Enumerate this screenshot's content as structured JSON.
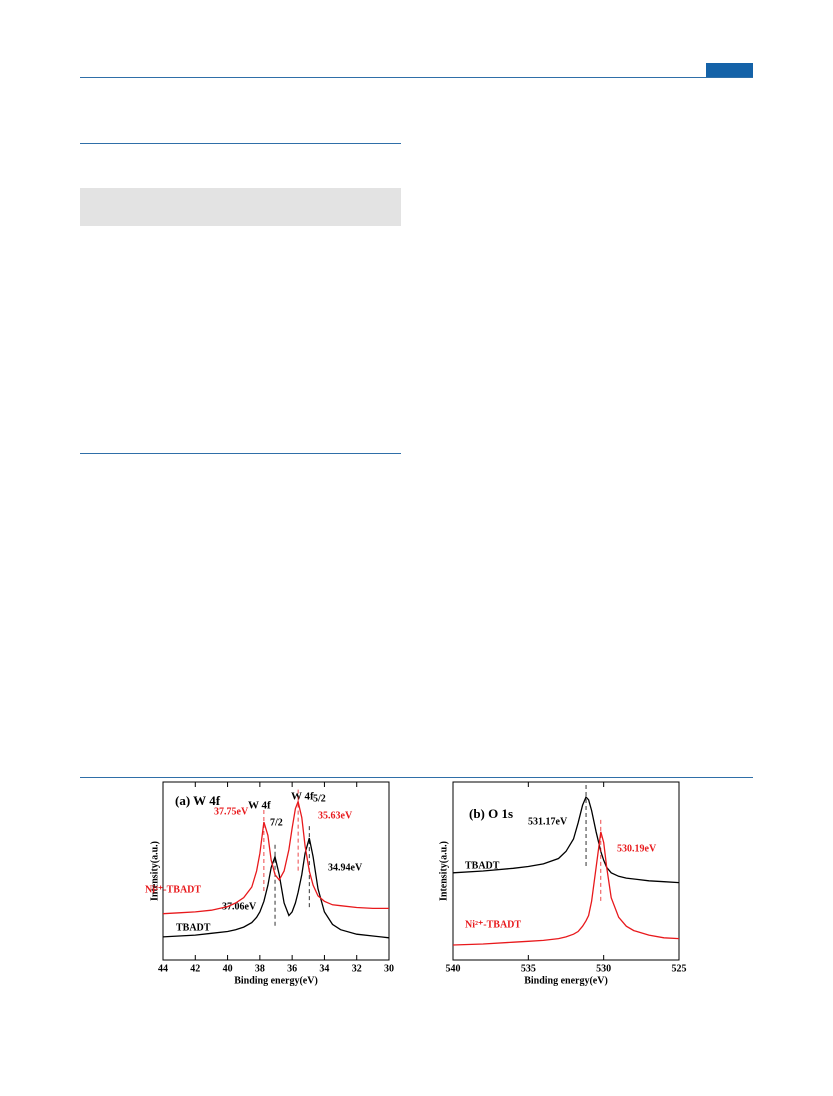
{
  "chart_data": [
    {
      "type": "line",
      "title": "(a) W 4f",
      "x_label": "Binding energy(eV)",
      "y_label": "Intensity(a.u.)",
      "annotations": [
        "W 4f",
        "7/2",
        "W 4f",
        "5/2"
      ],
      "xlim": [
        44,
        30
      ],
      "xticks": [
        44,
        42,
        40,
        38,
        36,
        34,
        32,
        30
      ],
      "ylim": [
        0,
        100
      ],
      "x": [
        44,
        43,
        42,
        41,
        40,
        39.5,
        39,
        38.5,
        38.2,
        38,
        37.75,
        37.5,
        37.3,
        37.06,
        36.8,
        36.5,
        36.2,
        36,
        35.8,
        35.63,
        35.4,
        35.2,
        34.94,
        34.7,
        34.4,
        34,
        33.5,
        33,
        32,
        31,
        30
      ],
      "series": [
        {
          "name": "TBADT",
          "color": "#000000",
          "values": [
            13,
            13.5,
            14,
            15,
            16,
            17,
            18.5,
            21,
            24,
            27,
            33,
            42,
            52,
            58,
            48,
            32,
            25,
            27,
            32,
            38,
            48,
            60,
            68.5,
            58,
            40,
            27,
            20,
            17,
            14.5,
            13.5,
            12.5
          ],
          "peaks": [
            {
              "label": "37.06eV",
              "x": 37.06
            },
            {
              "label": "34.94eV",
              "x": 34.94
            }
          ]
        },
        {
          "name": "Ni²⁺-TBADT",
          "color": "#e8191c",
          "values": [
            26,
            26.5,
            27,
            28,
            30,
            32,
            35,
            41,
            50,
            60,
            77.5,
            70,
            56,
            48,
            45,
            50,
            62,
            74,
            85,
            89,
            80,
            64,
            50,
            42,
            36,
            33,
            31,
            30.5,
            29.5,
            29,
            29
          ],
          "peaks": [
            {
              "label": "37.75eV",
              "x": 37.75
            },
            {
              "label": "35.63eV",
              "x": 35.63
            }
          ]
        }
      ]
    },
    {
      "type": "line",
      "title": "(b) O 1s",
      "x_label": "Binding energy(eV)",
      "y_label": "Intensity(a.u.)",
      "annotations": [],
      "xlim": [
        540,
        525
      ],
      "xticks": [
        540,
        535,
        530,
        525
      ],
      "ylim": [
        0,
        100
      ],
      "x": [
        540,
        538,
        536,
        535,
        534,
        533,
        532.5,
        532,
        531.7,
        531.4,
        531.17,
        531,
        530.8,
        530.5,
        530.19,
        530,
        529.8,
        529.5,
        529,
        528.5,
        528,
        527,
        526,
        525
      ],
      "series": [
        {
          "name": "TBADT",
          "color": "#000000",
          "values": [
            49,
            50,
            51.5,
            52.5,
            54,
            57,
            61,
            68,
            77,
            87,
            91.6,
            90,
            84,
            72,
            61,
            56,
            52,
            49,
            47,
            46,
            45.5,
            44.5,
            44,
            43.5
          ],
          "peaks": [
            {
              "label": "531.17eV",
              "x": 531.17
            }
          ]
        },
        {
          "name": "Ni²⁺-TBADT",
          "color": "#e8191c",
          "values": [
            8.4,
            9,
            10,
            10.5,
            11,
            12,
            13,
            14.5,
            16,
            19,
            22,
            25,
            33,
            52,
            72,
            66,
            52,
            35,
            24,
            19,
            16.5,
            14,
            12.5,
            12
          ],
          "peaks": [
            {
              "label": "530.19eV",
              "x": 530.19
            }
          ]
        }
      ]
    }
  ]
}
